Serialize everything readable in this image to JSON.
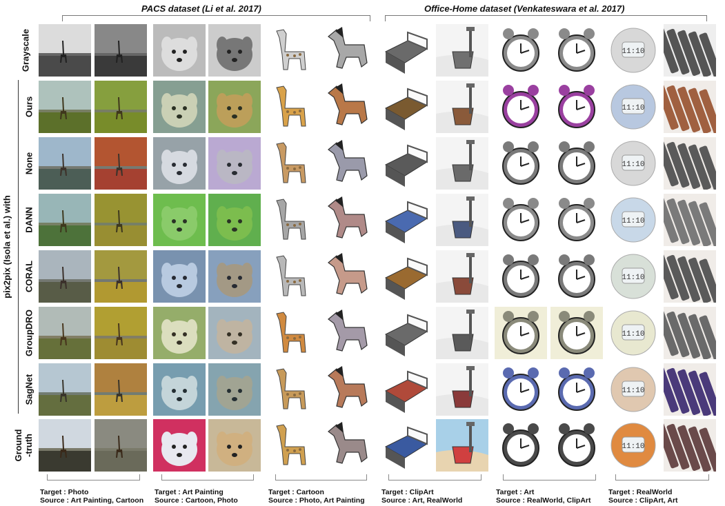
{
  "header": {
    "pacs_title": "PACS dataset (Li et al. 2017)",
    "office_title": "Office-Home dataset (Venkateswara et al. 2017)"
  },
  "side_label": "pix2pix (Isola et al.) with",
  "rows": [
    {
      "key": "grayscale",
      "label": "Grayscale"
    },
    {
      "key": "ours",
      "label": "Ours"
    },
    {
      "key": "none",
      "label": "None"
    },
    {
      "key": "dann",
      "label": "DANN"
    },
    {
      "key": "coral",
      "label": "CORAL"
    },
    {
      "key": "groupdro",
      "label": "GroupDRO"
    },
    {
      "key": "sagnet",
      "label": "SagNet"
    },
    {
      "key": "gt",
      "label_line1": "Ground",
      "label_line2": "-truth"
    }
  ],
  "columns": [
    {
      "subject": "giraffe-photo"
    },
    {
      "subject": "giraffe-painting"
    },
    {
      "subject": "dog-painting"
    },
    {
      "subject": "dog-photo"
    },
    {
      "subject": "giraffe-cartoon"
    },
    {
      "subject": "horse-cartoon"
    },
    {
      "subject": "bed-clipart"
    },
    {
      "subject": "bucket-clipart"
    },
    {
      "subject": "clock-art"
    },
    {
      "subject": "clocks-art"
    },
    {
      "subject": "alarm-realworld"
    },
    {
      "subject": "batteries-realworld"
    }
  ],
  "captions": [
    {
      "target": "Target : Photo",
      "source": "Source : Art Painting, Cartoon"
    },
    {
      "target": "Target : Art Painting",
      "source": "Source : Cartoon, Photo"
    },
    {
      "target": "Target : Cartoon",
      "source": "Source : Photo, Art Painting"
    },
    {
      "target": "Target : ClipArt",
      "source": "Source : Art, RealWorld"
    },
    {
      "target": "Target : Art",
      "source": "Source : RealWorld, ClipArt"
    },
    {
      "target": "Target : RealWorld",
      "source": "Source : ClipArt, Art"
    }
  ],
  "clock_digits": "11:10",
  "colors": {
    "giraffe": [
      "#d9a24a",
      "#c89a63",
      "#a6a6a6",
      "#b8b8b8",
      "#d08a40",
      "#c79a5a",
      "#d0a050"
    ],
    "horse": [
      "#b97848",
      "#9a9aaa",
      "#b08a88",
      "#c69a8a",
      "#a49aa8",
      "#b87a5a",
      "#9a8a8a"
    ],
    "bed": [
      "#7a5a30",
      "#5a5a5a",
      "#4a6ab0",
      "#9a6a30",
      "#6a6a6a",
      "#b04a3a",
      "#3a5aa0"
    ],
    "alarm": [
      "#b8c8e0",
      "#d8d8d8",
      "#c8d8e8",
      "#d8e0d8",
      "#e8e8d0",
      "#e0c8b0",
      "#e08a40"
    ]
  }
}
